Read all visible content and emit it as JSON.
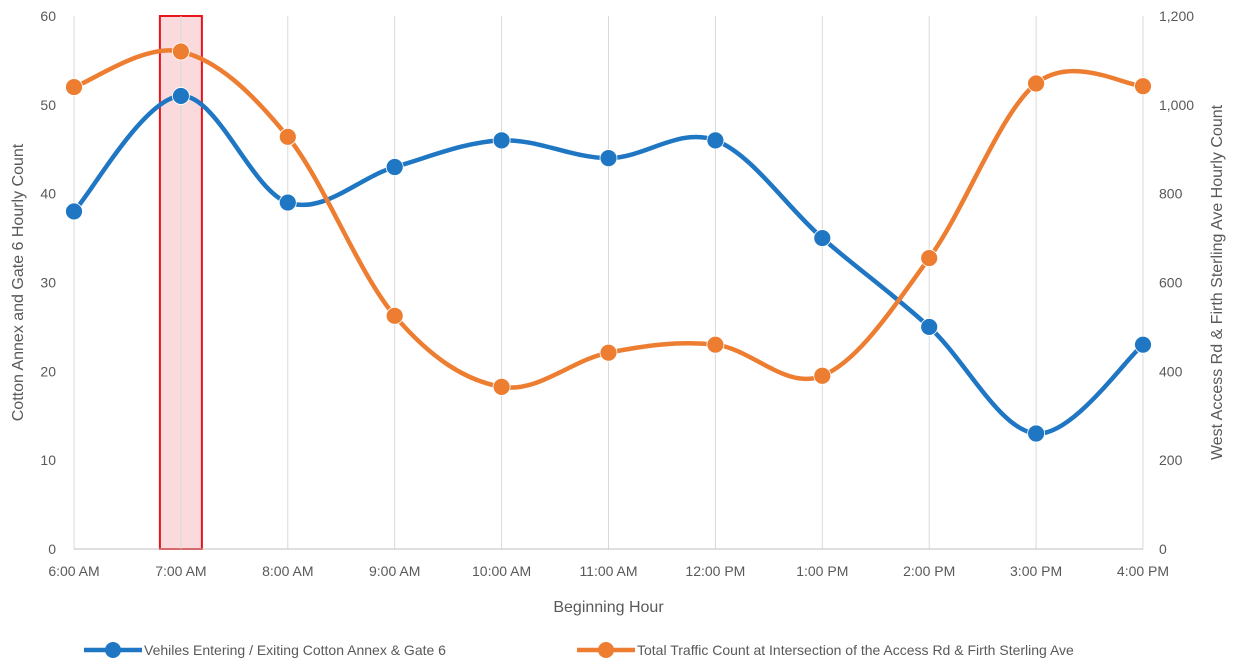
{
  "chart_data": {
    "type": "line",
    "smooth": true,
    "categories": [
      "6:00 AM",
      "7:00 AM",
      "8:00 AM",
      "9:00 AM",
      "10:00 AM",
      "11:00 AM",
      "12:00 PM",
      "1:00 PM",
      "2:00 PM",
      "3:00 PM",
      "4:00 PM"
    ],
    "xlabel": "Beginning Hour",
    "ylabel_left": "Cotton Annex and Gate 6 Hourly Count",
    "ylabel_right": "West Access Rd & Firth Sterling Ave Hourly Count",
    "ylim_left": [
      0,
      60
    ],
    "yticks_left": [
      "0",
      "10",
      "20",
      "30",
      "40",
      "50",
      "60"
    ],
    "ylim_right": [
      0,
      1200
    ],
    "yticks_right": [
      "0",
      "200",
      "400",
      "600",
      "800",
      "1,000",
      "1,200"
    ],
    "grid": "vertical",
    "legend_position": "bottom",
    "highlight": {
      "category": "7:00 AM",
      "border_color": "#e8141c",
      "fill_color": "#fadadd"
    },
    "series": [
      {
        "name": "Vehiles Entering / Exiting Cotton Annex & Gate 6",
        "axis": "left",
        "color": "#1f77c4",
        "values": [
          38,
          51,
          39,
          43,
          46,
          44,
          46,
          35,
          25,
          13,
          23
        ]
      },
      {
        "name": "Total Traffic Count at Intersection of the Access Rd & Firth Sterling Ave",
        "axis": "right",
        "color": "#ed7d31",
        "values": [
          1040,
          1120,
          928,
          525,
          365,
          442,
          460,
          390,
          655,
          1048,
          1042
        ]
      }
    ]
  }
}
